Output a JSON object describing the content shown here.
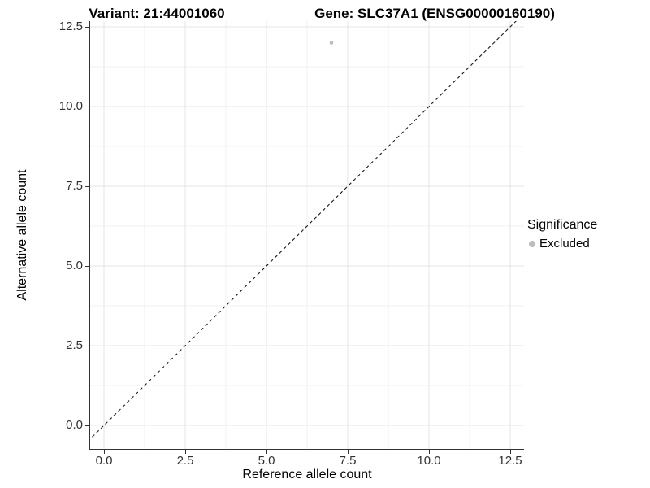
{
  "chart_data": {
    "type": "scatter",
    "title_left": "Variant: 21:44001060",
    "title_right": "Gene: SLC37A1 (ENSG00000160190)",
    "xlabel": "Reference allele count",
    "ylabel": "Alternative allele count",
    "xlim": [
      -0.425,
      12.925
    ],
    "ylim": [
      -0.74,
      12.68
    ],
    "x_tick_values": [
      0,
      2.5,
      5,
      7.5,
      10,
      12.5
    ],
    "x_tick_labels": [
      "0.0",
      "2.5",
      "5.0",
      "7.5",
      "10.0",
      "12.5"
    ],
    "y_tick_values": [
      0,
      2.5,
      5,
      7.5,
      10,
      12.5
    ],
    "y_tick_labels": [
      "0.0",
      "2.5",
      "5.0",
      "7.5",
      "10.0",
      "12.5"
    ],
    "x_minor_tick_values": [
      1.25,
      3.75,
      6.25,
      8.75,
      11.25
    ],
    "y_minor_tick_values": [
      1.25,
      3.75,
      6.25,
      8.75,
      11.25
    ],
    "grid": true,
    "series": [
      {
        "name": "Excluded",
        "color": "#bdbdbd",
        "point_radius": 2.3,
        "points": [
          {
            "x": 7,
            "y": 12
          }
        ]
      }
    ],
    "reference_line": {
      "slope": 1,
      "intercept": 0,
      "style": "dashed",
      "color": "#1a1a1a"
    },
    "legend": {
      "title": "Significance",
      "position": "right",
      "entries": [
        {
          "label": "Excluded",
          "color": "#bdbdbd"
        }
      ]
    }
  },
  "colors": {
    "major_grid": "#e4e4e4",
    "minor_grid": "#f1f1f1",
    "axis_line": "#333333",
    "tick_label": "#303030"
  }
}
